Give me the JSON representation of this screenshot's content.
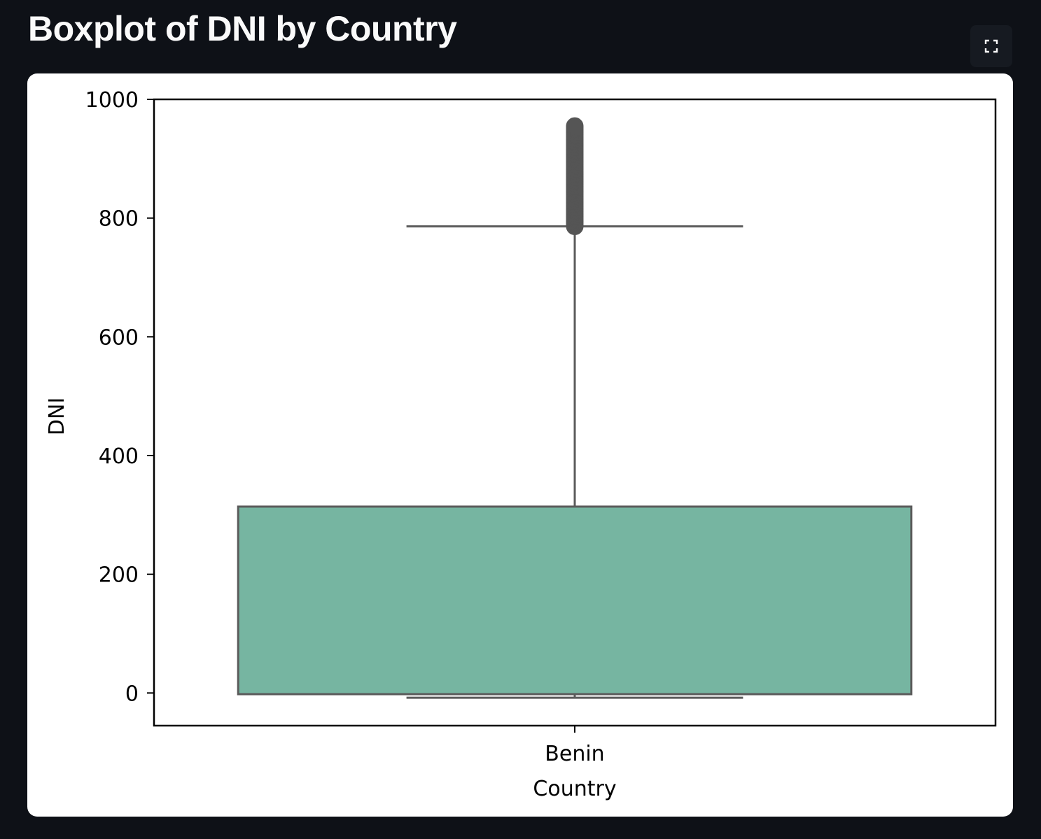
{
  "page": {
    "title": "Boxplot of DNI by Country"
  },
  "toolbar": {
    "fullscreen_icon": "fullscreen-icon"
  },
  "colors": {
    "background": "#0e1117",
    "card": "#ffffff",
    "box_fill": "#76b5a1",
    "box_edge": "#5b5b5b",
    "outlier": "#555555",
    "axis": "#000000"
  },
  "chart_data": {
    "type": "box",
    "title": "",
    "xlabel": "Country",
    "ylabel": "DNI",
    "categories": [
      "Benin"
    ],
    "ylim": [
      -55,
      1000
    ],
    "yticks": [
      0,
      200,
      400,
      600,
      800,
      1000
    ],
    "ytick_labels": [
      "0",
      "200",
      "400",
      "600",
      "800",
      "1000"
    ],
    "grid": false,
    "series": [
      {
        "category": "Benin",
        "whisker_low": -8,
        "q1": -2,
        "median": -2,
        "q3": 314,
        "whisker_high": 786,
        "outlier_range": [
          786,
          955
        ]
      }
    ]
  }
}
